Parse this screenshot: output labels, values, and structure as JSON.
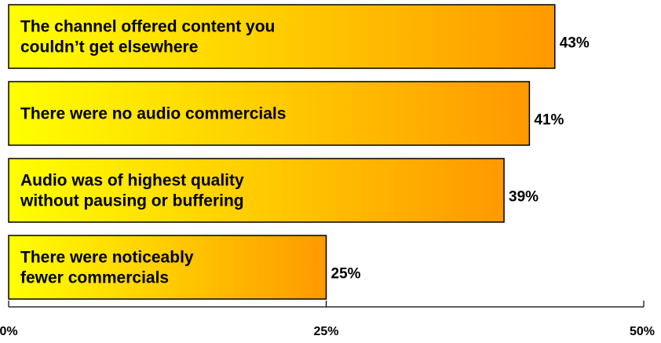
{
  "chart_data": {
    "type": "bar",
    "orientation": "horizontal",
    "categories": [
      [
        "The channel offered content you",
        "couldn’t get elsewhere"
      ],
      [
        "There were no audio commercials"
      ],
      [
        "Audio was of highest quality",
        "without pausing or buffering"
      ],
      [
        "There were noticeably",
        "fewer commercials"
      ]
    ],
    "values": [
      43,
      41,
      39,
      25
    ],
    "value_labels": [
      "43%",
      "41%",
      "39%",
      "25%"
    ],
    "xlim": [
      0,
      50
    ],
    "ticks": [
      0,
      25,
      50
    ],
    "tick_labels": [
      "0%",
      "25%",
      "50%"
    ],
    "title": "",
    "xlabel": "",
    "ylabel": "",
    "grid": false,
    "legend": "none",
    "colors": {
      "bar_gradient_start": "#ffff00",
      "bar_gradient_end": "#ff9900",
      "outline": "#000000"
    }
  }
}
